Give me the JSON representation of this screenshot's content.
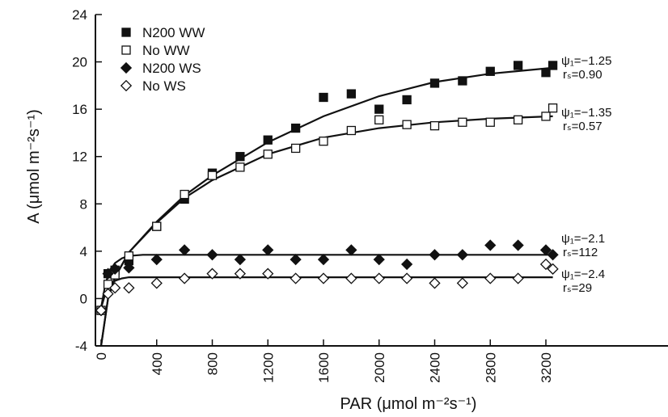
{
  "chart_data": {
    "type": "scatter",
    "title": "",
    "xlabel": "PAR (μmol m⁻²s⁻¹)",
    "ylabel": "A (μmol m⁻²s⁻¹)",
    "xlim": [
      -20,
      4000
    ],
    "ylim": [
      -4,
      24
    ],
    "xticks": [
      0,
      400,
      800,
      1200,
      1600,
      2000,
      2400,
      2800,
      3200
    ],
    "xtick_labels": [
      "0",
      "400",
      "800",
      "1200",
      "1600",
      "2000",
      "2400",
      "2800",
      "3200"
    ],
    "yticks": [
      -4,
      0,
      4,
      8,
      12,
      16,
      20,
      24
    ],
    "ytick_labels": [
      "-4",
      "0",
      "4",
      "8",
      "12",
      "16",
      "20",
      "24"
    ],
    "grid": false,
    "legend_position": "top-left",
    "series": [
      {
        "name": "N200 WW",
        "marker": "filled-square",
        "x": [
          0,
          50,
          100,
          200,
          400,
          600,
          800,
          1000,
          1200,
          1400,
          1600,
          1800,
          2000,
          2200,
          2400,
          2600,
          2800,
          3000,
          3200,
          3250
        ],
        "y": [
          -1.0,
          2.1,
          2.4,
          3.2,
          6.1,
          8.4,
          10.6,
          12.0,
          13.4,
          14.4,
          17.0,
          17.3,
          16.0,
          16.8,
          18.2,
          18.4,
          19.2,
          19.7,
          19.1,
          19.7
        ],
        "fit": {
          "x": [
            0,
            50,
            100,
            200,
            400,
            600,
            800,
            1200,
            1600,
            2000,
            2400,
            2800,
            3250
          ],
          "y": [
            -4.0,
            0.0,
            1.8,
            3.9,
            6.5,
            8.7,
            10.4,
            13.2,
            15.4,
            17.1,
            18.3,
            19.0,
            19.5
          ]
        },
        "annotation": {
          "psi": "ψ₁=−1.25",
          "rs": "rₛ=0.90"
        }
      },
      {
        "name": "No WW",
        "marker": "open-square",
        "x": [
          0,
          50,
          100,
          200,
          400,
          600,
          800,
          1000,
          1200,
          1400,
          1600,
          1800,
          2000,
          2200,
          2400,
          2600,
          2800,
          3000,
          3200,
          3250
        ],
        "y": [
          -1.0,
          1.2,
          2.0,
          3.6,
          6.1,
          8.8,
          10.4,
          11.1,
          12.2,
          12.7,
          13.3,
          14.2,
          15.1,
          14.7,
          14.6,
          14.9,
          14.9,
          15.1,
          15.4,
          16.1
        ],
        "fit": {
          "x": [
            0,
            50,
            100,
            200,
            400,
            600,
            800,
            1200,
            1600,
            2000,
            2400,
            2800,
            3250
          ],
          "y": [
            -4.0,
            0.0,
            1.8,
            3.9,
            6.4,
            8.5,
            10.0,
            12.2,
            13.6,
            14.4,
            14.9,
            15.2,
            15.4
          ]
        },
        "annotation": {
          "psi": "ψ₁=−1.35",
          "rs": "rₛ=0.57"
        }
      },
      {
        "name": "N200 WS",
        "marker": "filled-diamond",
        "x": [
          0,
          50,
          100,
          200,
          400,
          600,
          800,
          1000,
          1200,
          1400,
          1600,
          1800,
          2000,
          2200,
          2400,
          2600,
          2800,
          3000,
          3200,
          3250
        ],
        "y": [
          -1.0,
          2.1,
          2.5,
          2.6,
          3.3,
          4.1,
          3.7,
          3.3,
          4.1,
          3.3,
          3.3,
          4.1,
          3.3,
          2.9,
          3.7,
          3.7,
          4.5,
          4.5,
          4.1,
          3.7
        ],
        "fit": {
          "x": [
            0,
            30,
            60,
            100,
            150,
            200,
            300,
            400,
            600,
            3250
          ],
          "y": [
            -0.8,
            1.2,
            2.3,
            3.0,
            3.4,
            3.6,
            3.7,
            3.7,
            3.7,
            3.7
          ]
        },
        "annotation": {
          "psi": "ψ₁=−2.1",
          "rs": "rₛ=112"
        }
      },
      {
        "name": "No WS",
        "marker": "open-diamond",
        "x": [
          0,
          50,
          100,
          200,
          400,
          600,
          800,
          1000,
          1200,
          1400,
          1600,
          1800,
          2000,
          2200,
          2400,
          2600,
          2800,
          3000,
          3200,
          3250
        ],
        "y": [
          -1.0,
          0.4,
          0.9,
          0.9,
          1.3,
          1.7,
          2.1,
          2.1,
          2.1,
          1.7,
          1.7,
          1.7,
          1.7,
          1.7,
          1.3,
          1.3,
          1.7,
          1.7,
          2.9,
          2.5
        ],
        "fit": {
          "x": [
            0,
            30,
            60,
            100,
            150,
            200,
            300,
            400,
            600,
            3250
          ],
          "y": [
            -0.8,
            0.4,
            1.1,
            1.5,
            1.7,
            1.8,
            1.8,
            1.8,
            1.8,
            1.8
          ]
        },
        "annotation": {
          "psi": "ψ₁=−2.4",
          "rs": "rₛ=29"
        }
      }
    ]
  }
}
